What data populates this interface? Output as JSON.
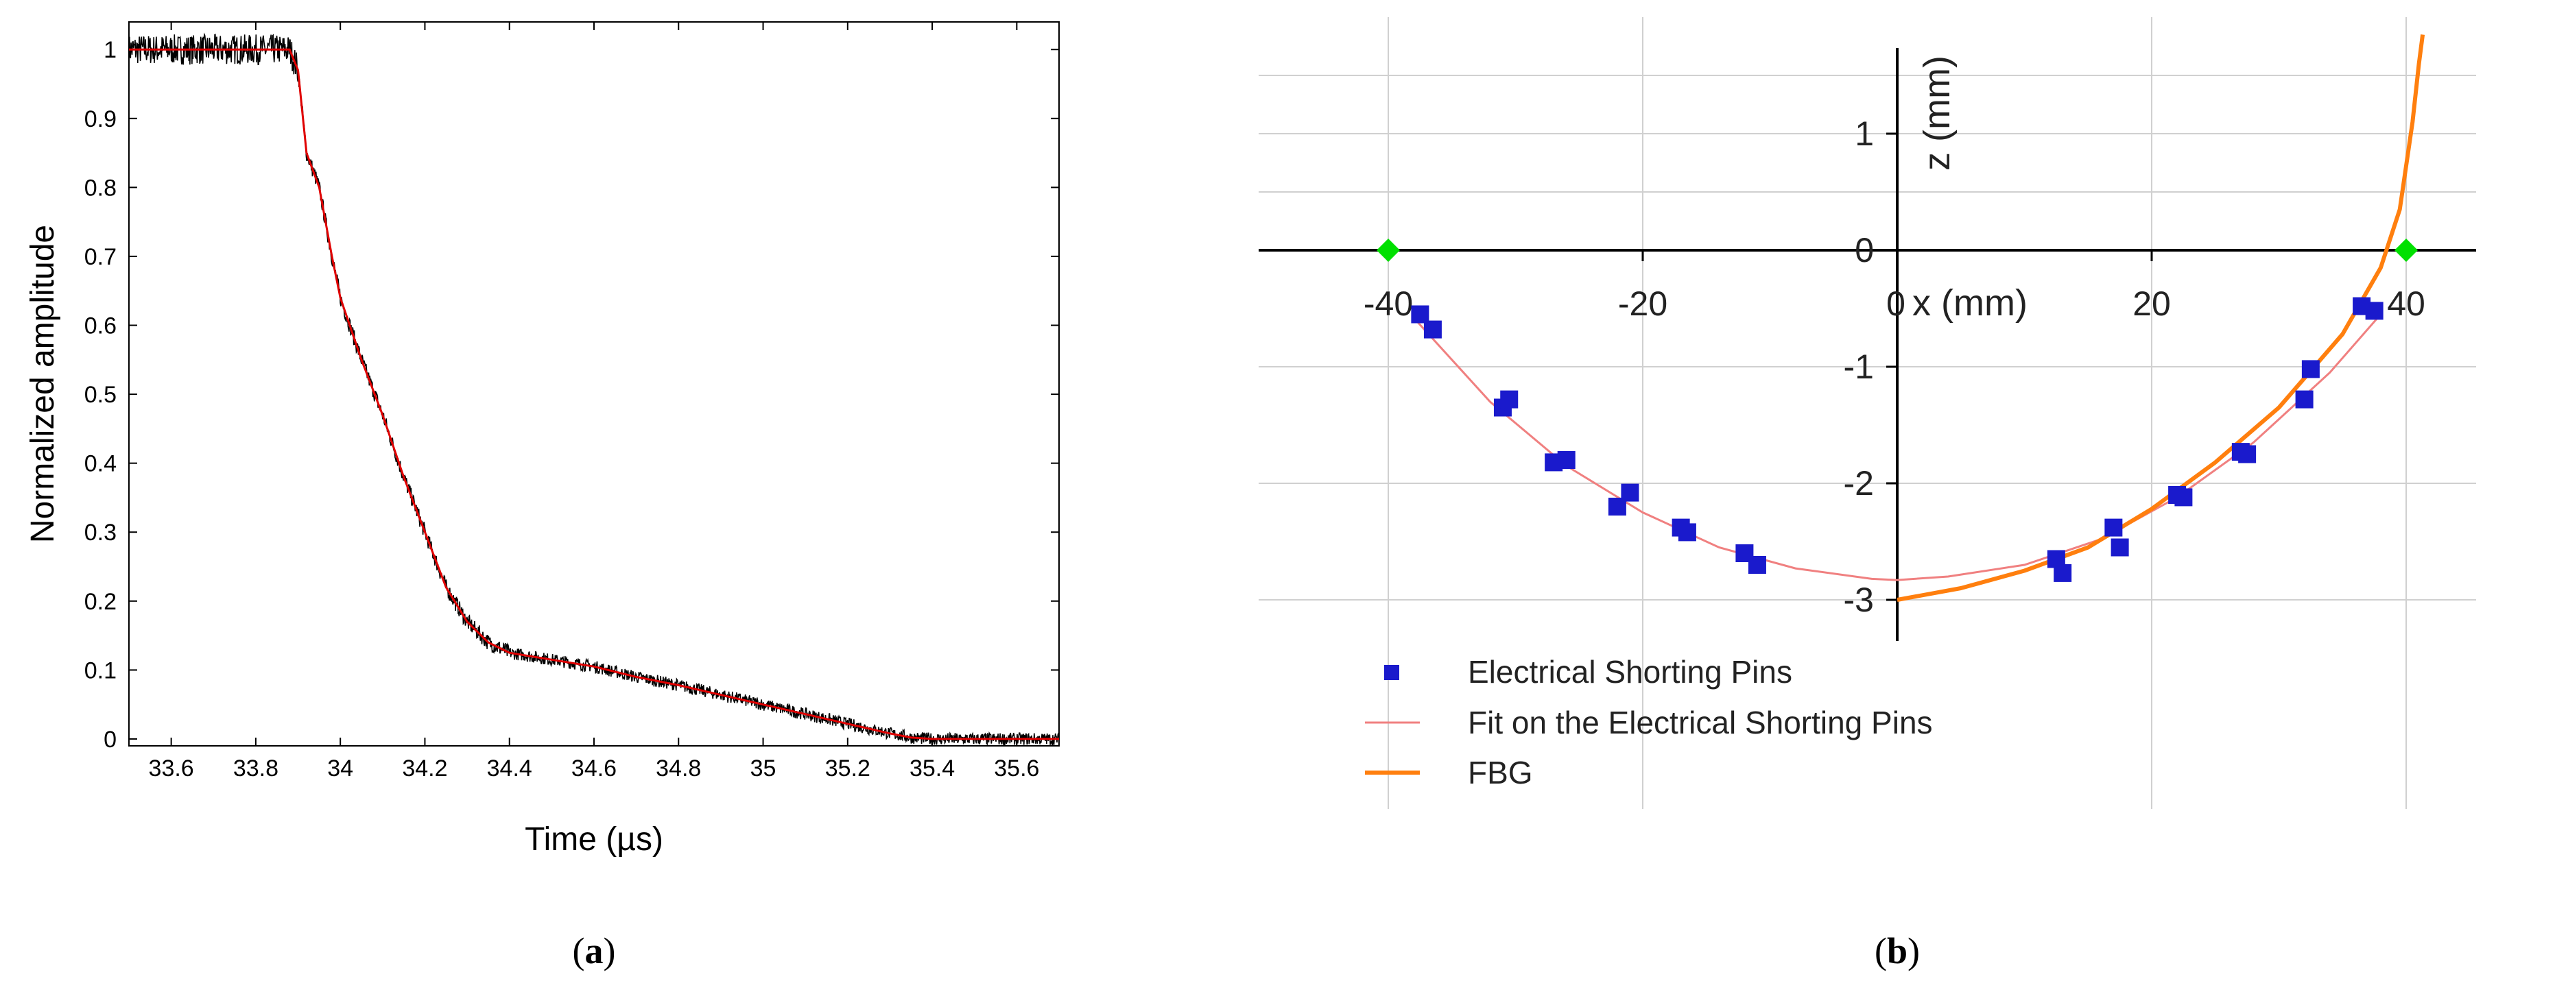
{
  "chart_data": [
    {
      "type": "line",
      "panel_label": "a",
      "xlabel": "Time (µs)",
      "ylabel": "Normalized amplitude",
      "xlim": [
        33.5,
        35.7
      ],
      "ylim": [
        -0.01,
        1.04
      ],
      "xticks": [
        "33.6",
        "33.8",
        "34",
        "34.2",
        "34.4",
        "34.6",
        "34.8",
        "35",
        "35.2",
        "35.4",
        "35.6"
      ],
      "yticks": [
        "0",
        "0.1",
        "0.2",
        "0.3",
        "0.4",
        "0.5",
        "0.6",
        "0.7",
        "0.8",
        "0.9",
        "1"
      ],
      "series": [
        {
          "style": "noisy-measurement",
          "color": "#000000",
          "x": [
            33.5,
            33.88,
            33.9,
            33.92,
            33.95,
            33.98,
            34.0,
            34.05,
            34.1,
            34.15,
            34.2,
            34.25,
            34.3,
            34.35,
            34.4,
            34.5,
            34.6,
            34.7,
            34.8,
            34.9,
            35.0,
            35.1,
            35.2,
            35.3,
            35.35,
            35.4,
            35.5,
            35.6,
            35.7
          ],
          "y": [
            1.0,
            1.0,
            0.97,
            0.85,
            0.8,
            0.7,
            0.64,
            0.55,
            0.47,
            0.38,
            0.3,
            0.22,
            0.17,
            0.14,
            0.125,
            0.115,
            0.105,
            0.09,
            0.078,
            0.064,
            0.05,
            0.036,
            0.022,
            0.008,
            0.002,
            0.0,
            0.0,
            0.0,
            0.0
          ]
        },
        {
          "style": "smooth-fit",
          "color": "#e00000",
          "x": [
            33.5,
            33.88,
            33.9,
            33.92,
            33.95,
            33.98,
            34.0,
            34.05,
            34.1,
            34.15,
            34.2,
            34.25,
            34.3,
            34.35,
            34.4,
            34.5,
            34.6,
            34.7,
            34.8,
            34.9,
            35.0,
            35.1,
            35.2,
            35.3,
            35.35,
            35.4,
            35.5,
            35.6,
            35.7
          ],
          "y": [
            1.0,
            1.0,
            0.97,
            0.85,
            0.8,
            0.7,
            0.64,
            0.55,
            0.47,
            0.38,
            0.3,
            0.22,
            0.17,
            0.14,
            0.125,
            0.115,
            0.105,
            0.09,
            0.078,
            0.064,
            0.05,
            0.036,
            0.022,
            0.008,
            0.002,
            0.0,
            0.0,
            0.0,
            0.0
          ]
        }
      ]
    },
    {
      "type": "scatter",
      "panel_label": "b",
      "xlabel": "x (mm)",
      "ylabel": "z (mm)",
      "xlim": [
        -50,
        50
      ],
      "ylim": [
        -3.3,
        1.85
      ],
      "xticks": [
        -40,
        -20,
        0,
        20,
        40
      ],
      "yticks": [
        1,
        0,
        -1,
        -2,
        -3
      ],
      "legend_position": "bottom-left",
      "series": [
        {
          "name": "Electrical Shorting Pins",
          "kind": "markers",
          "color": "#1a1acc",
          "x": [
            -37.5,
            -36.5,
            -31,
            -30.5,
            -27,
            -26,
            -22,
            -21,
            -17,
            -16.5,
            -12,
            -11,
            12.5,
            13,
            17,
            17.5,
            22,
            22.5,
            27,
            27.5,
            32,
            32.5,
            36.5,
            37.5
          ],
          "y": [
            -0.55,
            -0.68,
            -1.35,
            -1.28,
            -1.82,
            -1.8,
            -2.2,
            -2.08,
            -2.38,
            -2.42,
            -2.6,
            -2.7,
            -2.65,
            -2.77,
            -2.38,
            -2.55,
            -2.1,
            -2.12,
            -1.73,
            -1.75,
            -1.28,
            -1.02,
            -0.48,
            -0.52
          ]
        },
        {
          "name": "Fit on the Electrical Shorting Pins",
          "kind": "line",
          "color": "#f08080",
          "x": [
            -38,
            -32,
            -26,
            -20,
            -14,
            -8,
            -2,
            0,
            4,
            10,
            16,
            22,
            28,
            34,
            38
          ],
          "y": [
            -0.58,
            -1.3,
            -1.85,
            -2.25,
            -2.55,
            -2.73,
            -2.82,
            -2.83,
            -2.8,
            -2.7,
            -2.48,
            -2.12,
            -1.65,
            -1.05,
            -0.55
          ]
        },
        {
          "name": "FBG",
          "kind": "line",
          "color": "#ff7f0e",
          "x": [
            0,
            5,
            10,
            15,
            20,
            25,
            30,
            35,
            38,
            39.5,
            40.5,
            41,
            41.3
          ],
          "y": [
            -3.0,
            -2.9,
            -2.75,
            -2.55,
            -2.22,
            -1.82,
            -1.35,
            -0.72,
            -0.15,
            0.35,
            1.1,
            1.6,
            1.85
          ]
        },
        {
          "name": "",
          "kind": "endpoints",
          "color": "#00e000",
          "x": [
            -40,
            40
          ],
          "y": [
            0,
            0
          ]
        }
      ]
    }
  ]
}
